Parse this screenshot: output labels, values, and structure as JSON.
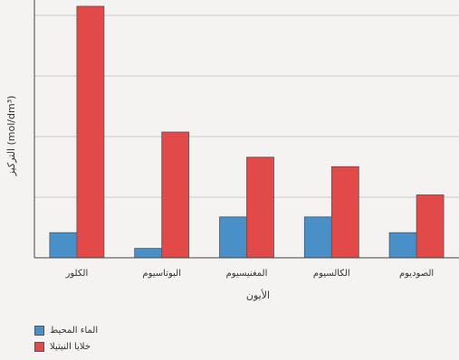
{
  "chart_data": {
    "type": "bar",
    "categories": [
      "الكلور",
      "البوتاسيوم",
      "المغنيسيوم",
      "الكالسيوم",
      "الصوديوم"
    ],
    "series": [
      {
        "name": "الماء المحيط",
        "values": [
          0.8,
          0.3,
          1.3,
          1.3,
          0.8
        ],
        "color": "#4a90c8"
      },
      {
        "name": "خلايا النيتيلا",
        "values": [
          8.0,
          4.0,
          3.2,
          2.9,
          2.0
        ],
        "color": "#e24a4a"
      }
    ],
    "xlabel": "الأيون",
    "ylabel": "التركيز (mol/dm³)",
    "ylim": [
      0,
      8.2
    ],
    "grid": true,
    "legend_position": "bottom-left"
  }
}
